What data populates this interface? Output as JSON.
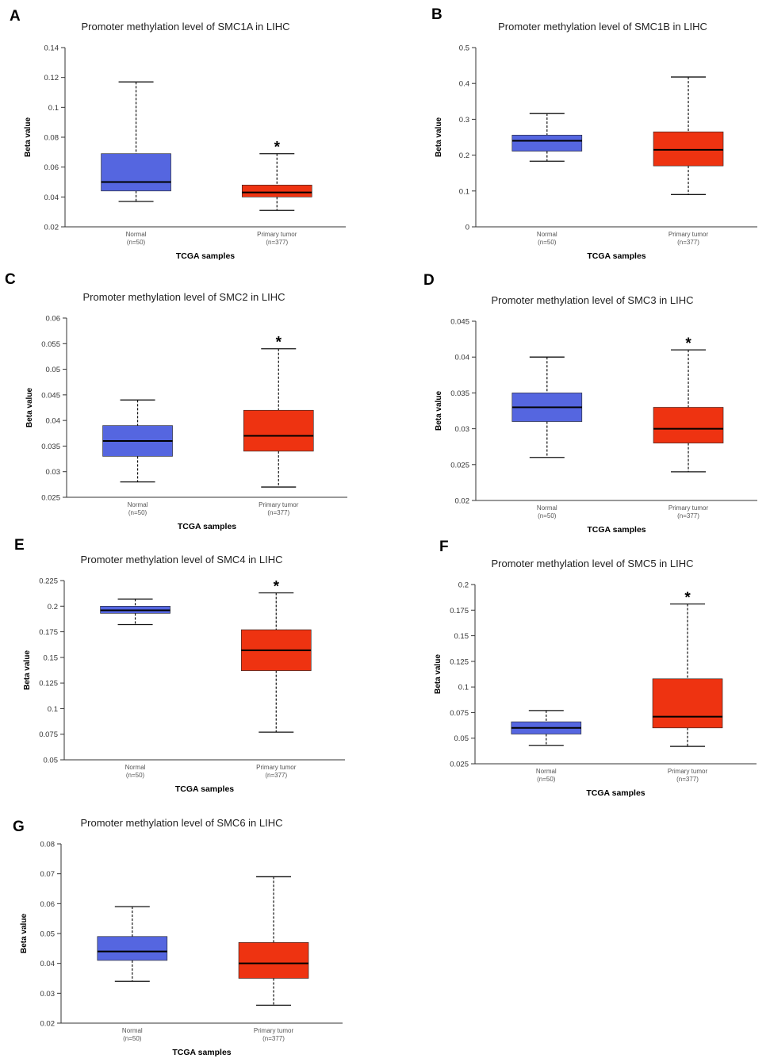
{
  "figure": {
    "normal_color": "#5566e0",
    "tumor_color": "#ee3311",
    "whisker_color": "#111111",
    "median_color": "#000000"
  },
  "chart_data": [
    {
      "type": "box",
      "panel": "A",
      "title": "Promoter methylation level of SMC1A in LIHC",
      "xlabel": "TCGA samples",
      "ylabel": "Beta value",
      "ylim": [
        0.02,
        0.14
      ],
      "yticks": [
        "0.02",
        "0.04",
        "0.06",
        "0.08",
        "0.1",
        "0.12",
        "0.14"
      ],
      "groups": [
        {
          "name": "Normal",
          "n": "(n=50)",
          "min": 0.037,
          "q1": 0.044,
          "median": 0.05,
          "q3": 0.069,
          "max": 0.117,
          "significant": false
        },
        {
          "name": "Primary tumor",
          "n": "(n=377)",
          "min": 0.031,
          "q1": 0.04,
          "median": 0.043,
          "q3": 0.048,
          "max": 0.069,
          "significant": true
        }
      ]
    },
    {
      "type": "box",
      "panel": "B",
      "title": "Promoter methylation level of SMC1B in LIHC",
      "xlabel": "TCGA samples",
      "ylabel": "Beta value",
      "ylim": [
        0,
        0.5
      ],
      "yticks": [
        "0",
        "0.1",
        "0.2",
        "0.3",
        "0.4",
        "0.5"
      ],
      "groups": [
        {
          "name": "Normal",
          "n": "(n=50)",
          "min": 0.183,
          "q1": 0.211,
          "median": 0.24,
          "q3": 0.256,
          "max": 0.316,
          "significant": false
        },
        {
          "name": "Primary tumor",
          "n": "(n=377)",
          "min": 0.09,
          "q1": 0.17,
          "median": 0.215,
          "q3": 0.265,
          "max": 0.418,
          "significant": false
        }
      ]
    },
    {
      "type": "box",
      "panel": "C",
      "title": "Promoter methylation level of SMC2 in LIHC",
      "xlabel": "TCGA samples",
      "ylabel": "Beta value",
      "ylim": [
        0.025,
        0.06
      ],
      "yticks": [
        "0.025",
        "0.03",
        "0.035",
        "0.04",
        "0.045",
        "0.05",
        "0.055",
        "0.06"
      ],
      "groups": [
        {
          "name": "Normal",
          "n": "(n=50)",
          "min": 0.028,
          "q1": 0.033,
          "median": 0.036,
          "q3": 0.039,
          "max": 0.044,
          "significant": false
        },
        {
          "name": "Primary tumor",
          "n": "(n=377)",
          "min": 0.027,
          "q1": 0.034,
          "median": 0.037,
          "q3": 0.042,
          "max": 0.054,
          "significant": true
        }
      ]
    },
    {
      "type": "box",
      "panel": "D",
      "title": "Promoter methylation level of SMC3 in LIHC",
      "xlabel": "TCGA samples",
      "ylabel": "Beta value",
      "ylim": [
        0.02,
        0.045
      ],
      "yticks": [
        "0.02",
        "0.025",
        "0.03",
        "0.035",
        "0.04",
        "0.045"
      ],
      "groups": [
        {
          "name": "Normal",
          "n": "(n=50)",
          "min": 0.026,
          "q1": 0.031,
          "median": 0.033,
          "q3": 0.035,
          "max": 0.04,
          "significant": false
        },
        {
          "name": "Primary tumor",
          "n": "(n=377)",
          "min": 0.024,
          "q1": 0.028,
          "median": 0.03,
          "q3": 0.033,
          "max": 0.041,
          "significant": true
        }
      ]
    },
    {
      "type": "box",
      "panel": "E",
      "title": "Promoter methylation level of SMC4 in LIHC",
      "xlabel": "TCGA samples",
      "ylabel": "Beta value",
      "ylim": [
        0.05,
        0.225
      ],
      "yticks": [
        "0.05",
        "0.075",
        "0.1",
        "0.125",
        "0.15",
        "0.175",
        "0.2",
        "0.225"
      ],
      "groups": [
        {
          "name": "Normal",
          "n": "(n=50)",
          "min": 0.182,
          "q1": 0.193,
          "median": 0.196,
          "q3": 0.2,
          "max": 0.207,
          "significant": false
        },
        {
          "name": "Primary tumor",
          "n": "(n=377)",
          "min": 0.077,
          "q1": 0.137,
          "median": 0.157,
          "q3": 0.177,
          "max": 0.213,
          "significant": true
        }
      ]
    },
    {
      "type": "box",
      "panel": "F",
      "title": "Promoter methylation level of SMC5 in LIHC",
      "xlabel": "TCGA samples",
      "ylabel": "Beta value",
      "ylim": [
        0.025,
        0.2
      ],
      "yticks": [
        "0.025",
        "0.05",
        "0.075",
        "0.1",
        "0.125",
        "0.15",
        "0.175",
        "0.2"
      ],
      "groups": [
        {
          "name": "Normal",
          "n": "(n=50)",
          "min": 0.043,
          "q1": 0.054,
          "median": 0.06,
          "q3": 0.066,
          "max": 0.077,
          "significant": false
        },
        {
          "name": "Primary tumor",
          "n": "(n=377)",
          "min": 0.042,
          "q1": 0.06,
          "median": 0.071,
          "q3": 0.108,
          "max": 0.181,
          "significant": true
        }
      ]
    },
    {
      "type": "box",
      "panel": "G",
      "title": "Promoter methylation level of SMC6 in LIHC",
      "xlabel": "TCGA samples",
      "ylabel": "Beta value",
      "ylim": [
        0.02,
        0.08
      ],
      "yticks": [
        "0.02",
        "0.03",
        "0.04",
        "0.05",
        "0.06",
        "0.07",
        "0.08"
      ],
      "groups": [
        {
          "name": "Normal",
          "n": "(n=50)",
          "min": 0.034,
          "q1": 0.041,
          "median": 0.044,
          "q3": 0.049,
          "max": 0.059,
          "significant": false
        },
        {
          "name": "Primary tumor",
          "n": "(n=377)",
          "min": 0.026,
          "q1": 0.035,
          "median": 0.04,
          "q3": 0.047,
          "max": 0.069,
          "significant": false
        }
      ]
    }
  ]
}
